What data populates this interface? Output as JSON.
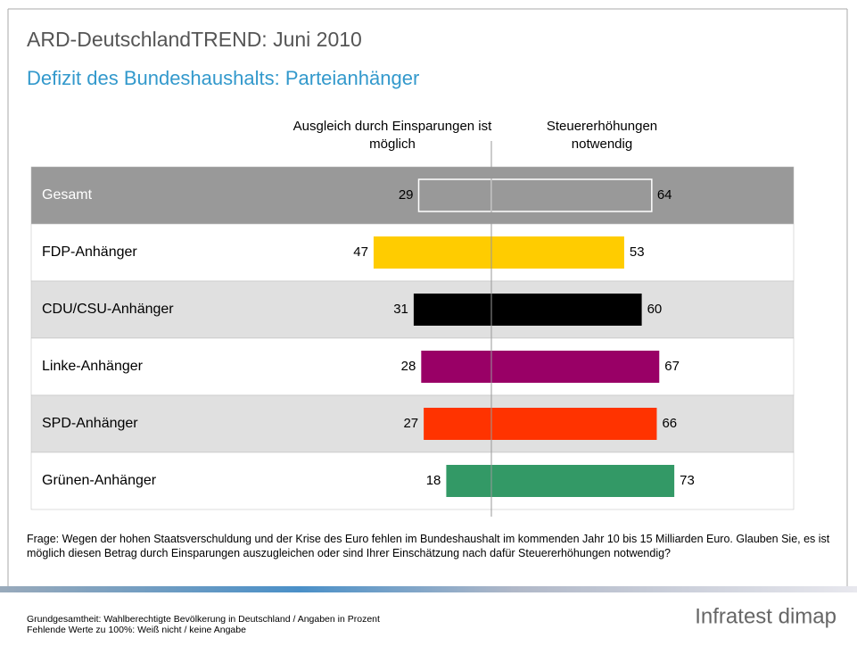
{
  "chart_data": {
    "type": "diverging_bar",
    "title": "ARD-DeutschlandTREND: Juni 2010",
    "subtitle": "Defizit des Bundeshaushalts: Parteianhänger",
    "categories": [
      "Gesamt",
      "FDP-Anhänger",
      "CDU/CSU-Anhänger",
      "Linke-Anhänger",
      "SPD-Anhänger",
      "Grünen-Anhänger"
    ],
    "colors": [
      "#999999",
      "#ffcc00",
      "#000000",
      "#990066",
      "#ff3300",
      "#339966"
    ],
    "series": [
      {
        "name": "Ausgleich durch Einsparungen ist möglich",
        "side": "left",
        "values": [
          29,
          47,
          31,
          28,
          27,
          18
        ]
      },
      {
        "name": "Steuererhöhungen notwendig",
        "side": "right",
        "values": [
          64,
          53,
          60,
          67,
          66,
          73
        ]
      }
    ],
    "question": "Frage: Wegen der hohen Staatsverschuldung und der Krise des Euro fehlen im Bundeshaushalt im kommenden Jahr 10 bis 15 Milliarden Euro. Glauben Sie, es ist möglich diesen Betrag durch Einsparungen auszugleichen oder sind Ihrer Einschätzung nach dafür Steuererhöhungen notwendig?",
    "notes": [
      "Grundgesamtheit: Wahlberechtigte Bevölkerung in Deutschland / Angaben in Prozent",
      "Fehlende Werte zu 100%: Weiß nicht / keine Angabe"
    ],
    "brand": "Infratest dimap"
  }
}
